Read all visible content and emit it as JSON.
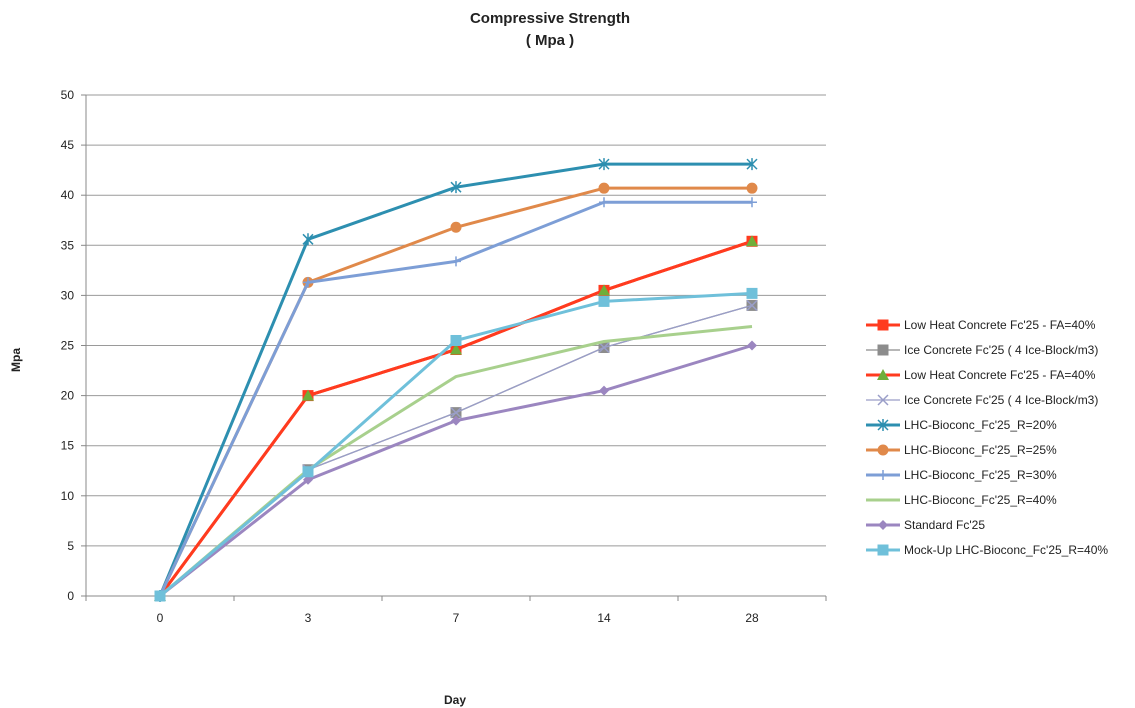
{
  "chart_data": {
    "type": "line",
    "title": "Compressive Strength",
    "subtitle": "( Mpa )",
    "xlabel": "Day",
    "ylabel": "Mpa",
    "categories": [
      "0",
      "3",
      "7",
      "14",
      "28"
    ],
    "ylim": [
      0,
      50
    ],
    "yticks": [
      0,
      5,
      10,
      15,
      20,
      25,
      30,
      35,
      40,
      45,
      50
    ],
    "grid": true,
    "legend_position": "right",
    "series": [
      {
        "name": "Low Heat Concrete Fc'25  - FA=40%",
        "color": "#ff3b1f",
        "marker": "square",
        "values": [
          0,
          20.0,
          24.6,
          30.5,
          35.4
        ]
      },
      {
        "name": "Ice Concrete Fc'25  ( 4 Ice-Block/m3)",
        "color": "#8c8c8c",
        "marker": "square",
        "values": [
          0,
          12.6,
          18.3,
          24.8,
          29.0
        ]
      },
      {
        "name": "Low Heat Concrete Fc'25  - FA=40%",
        "color": "#ff3b1f",
        "marker": "triangle",
        "marker_color": "#6fae3a",
        "values": [
          0,
          20.0,
          24.6,
          30.5,
          35.4
        ]
      },
      {
        "name": "Ice Concrete Fc'25  ( 4 Ice-Block/m3)",
        "color": "#9a9ec8",
        "marker": "x",
        "values": [
          0,
          12.6,
          18.3,
          24.8,
          29.0
        ]
      },
      {
        "name": "LHC-Bioconc_Fc'25_R=20%",
        "color": "#2d8fb0",
        "marker": "star",
        "values": [
          0,
          35.6,
          40.8,
          43.1,
          43.1
        ]
      },
      {
        "name": "LHC-Bioconc_Fc'25_R=25%",
        "color": "#e0894a",
        "marker": "circle",
        "values": [
          0,
          31.3,
          36.8,
          40.7,
          40.7
        ]
      },
      {
        "name": "LHC-Bioconc_Fc'25_R=30%",
        "color": "#7d9ed6",
        "marker": "plus",
        "values": [
          0,
          31.3,
          33.4,
          39.3,
          39.3
        ]
      },
      {
        "name": "LHC-Bioconc_Fc'25_R=40%",
        "color": "#a8d08d",
        "marker": "none",
        "values": [
          0,
          12.6,
          21.9,
          25.4,
          26.9
        ]
      },
      {
        "name": "Standard Fc'25",
        "color": "#9b86c0",
        "marker": "diamond",
        "values": [
          0,
          11.6,
          17.5,
          20.5,
          25.0
        ]
      },
      {
        "name": "Mock-Up LHC-Bioconc_Fc'25_R=40%",
        "color": "#6fc0da",
        "marker": "square",
        "values": [
          0,
          12.4,
          25.5,
          29.4,
          30.2
        ]
      }
    ]
  }
}
